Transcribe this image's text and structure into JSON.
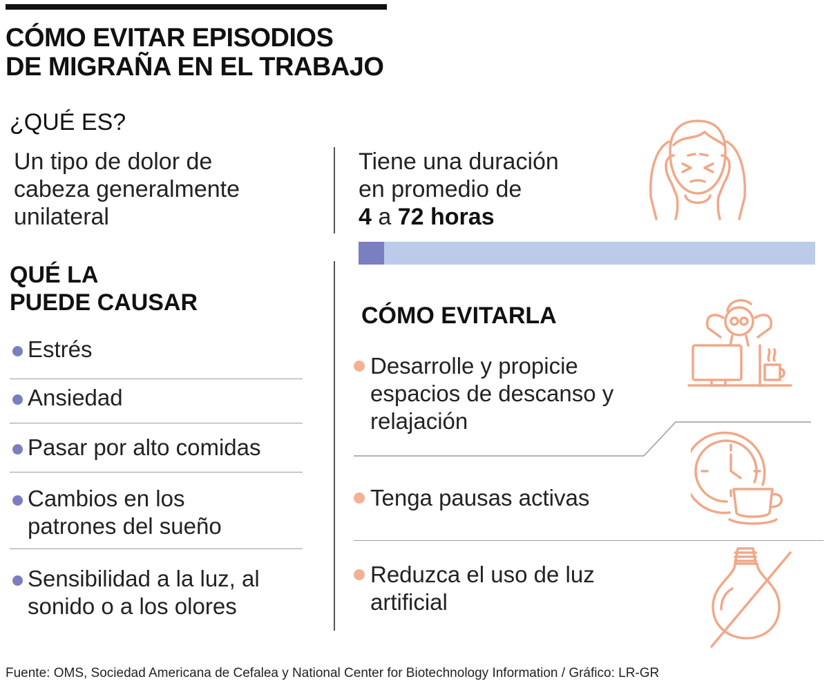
{
  "title": {
    "line1": "CÓMO EVITAR EPISODIOS",
    "line2": "DE MIGRAÑA EN EL TRABAJO"
  },
  "que_es": {
    "heading": "¿QUÉ ES?",
    "definition": [
      "Un tipo de dolor de",
      "cabeza generalmente",
      "unilateral"
    ]
  },
  "duracion": {
    "line1": "Tiene una duración",
    "line2": "en promedio de",
    "min": "4",
    "connector": "a",
    "max": "72 horas",
    "bar_fraction": 0.056,
    "bar_fill_color": "#7a7fc0",
    "bar_bg_color": "#bccbe9"
  },
  "causas": {
    "heading": [
      "QUÉ LA",
      "PUEDE CAUSAR"
    ],
    "items": [
      [
        "Estrés"
      ],
      [
        "Ansiedad"
      ],
      [
        "Pasar por alto comidas"
      ],
      [
        "Cambios en los",
        "patrones del sueño"
      ],
      [
        "Sensibilidad a la luz, al",
        "sonido o a los olores"
      ]
    ],
    "bullet_color": "#7b7fbf"
  },
  "evitar": {
    "heading": "CÓMO EVITARLA",
    "tips": [
      [
        "Desarrolle y propicie",
        "espacios de descanso y",
        "relajación"
      ],
      [
        "Tenga pausas activas"
      ],
      [
        "Reduzca el uso de luz",
        "artificial"
      ]
    ],
    "bullet_color": "#f4b194"
  },
  "icons": [
    "headache-person-icon",
    "relaxing-at-desk-icon",
    "clock-coffee-icon",
    "no-lightbulb-icon"
  ],
  "accent_color": "#f0a888",
  "source": "Fuente: OMS, Sociedad Americana de Cefalea y National Center for Biotechnology Information / Gráfico: LR-GR"
}
